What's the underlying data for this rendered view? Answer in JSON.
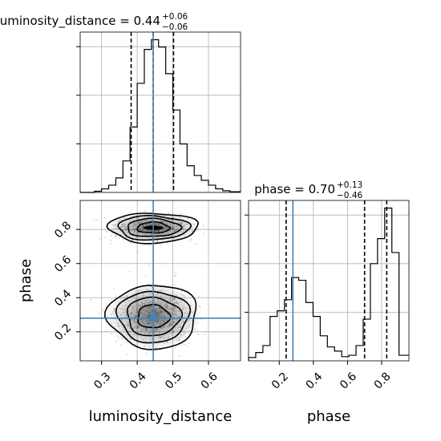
{
  "chart_data": {
    "type": "corner",
    "parameters": [
      "luminosity_distance",
      "phase"
    ],
    "truths": {
      "luminosity_distance": 0.445,
      "phase": 0.28
    },
    "truth_color": "#4682b4",
    "histogram_color": "#000000",
    "panels": [
      {
        "kind": "hist1d",
        "parameter": "luminosity_distance",
        "title": {
          "text": "luminosity_distance = 0.44",
          "plus": "+0.06",
          "minus": "−0.06"
        },
        "quantiles": [
          0.383,
          0.445,
          0.502
        ],
        "xlim": [
          0.24,
          0.69
        ],
        "bins": [
          0.24,
          0.26,
          0.28,
          0.3,
          0.32,
          0.34,
          0.36,
          0.38,
          0.4,
          0.42,
          0.44,
          0.46,
          0.48,
          0.5,
          0.52,
          0.54,
          0.56,
          0.58,
          0.6,
          0.62,
          0.64,
          0.66,
          0.69
        ],
        "counts": [
          0,
          0,
          0.5,
          1.5,
          3,
          6,
          13,
          27,
          45,
          59,
          63,
          60,
          49,
          34,
          20,
          11,
          7,
          5,
          3,
          1.5,
          0.7,
          0.3
        ],
        "grid": true
      },
      {
        "kind": "hist1d",
        "parameter": "phase",
        "title": {
          "text": "phase = 0.70",
          "plus": "+0.13",
          "minus": "−0.46"
        },
        "quantiles": [
          0.24,
          0.7,
          0.83
        ],
        "xlim": [
          0.02,
          0.96
        ],
        "bins": [
          0.02,
          0.062,
          0.104,
          0.146,
          0.188,
          0.23,
          0.272,
          0.314,
          0.356,
          0.398,
          0.44,
          0.482,
          0.524,
          0.566,
          0.608,
          0.65,
          0.692,
          0.734,
          0.776,
          0.818,
          0.86,
          0.902,
          0.96
        ],
        "counts": [
          1.2,
          3.0,
          5.5,
          16,
          18,
          22,
          30,
          29,
          21,
          16,
          9,
          5,
          3.5,
          1.5,
          2,
          5.5,
          15,
          35,
          44,
          55,
          39,
          2
        ],
        "grid": true
      },
      {
        "kind": "hist2d",
        "x_parameter": "luminosity_distance",
        "y_parameter": "phase",
        "xlim": [
          0.24,
          0.69
        ],
        "ylim": [
          0.03,
          0.97
        ],
        "modes": [
          {
            "x": 0.445,
            "y": 0.81,
            "sx": 0.05,
            "sy": 0.035,
            "weight": 0.45
          },
          {
            "x": 0.445,
            "y": 0.29,
            "sx": 0.05,
            "sy": 0.075,
            "weight": 0.55
          }
        ],
        "grid": true
      }
    ],
    "axes": {
      "luminosity_distance": {
        "label": "luminosity_distance",
        "ticks": [
          0.3,
          0.4,
          0.5,
          0.6
        ],
        "tick_labels": [
          "0.3",
          "0.4",
          "0.5",
          "0.6"
        ]
      },
      "phase_x": {
        "label": "phase",
        "ticks": [
          0.2,
          0.4,
          0.6,
          0.8
        ],
        "tick_labels": [
          "0.2",
          "0.4",
          "0.6",
          "0.8"
        ]
      },
      "phase_y": {
        "label": "phase",
        "ticks": [
          0.2,
          0.4,
          0.6,
          0.8
        ],
        "tick_labels": [
          "0.2",
          "0.4",
          "0.6",
          "0.8"
        ]
      }
    }
  }
}
